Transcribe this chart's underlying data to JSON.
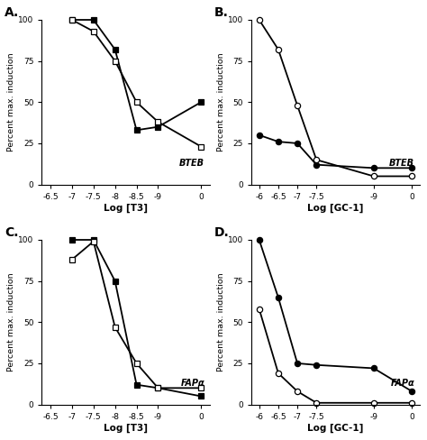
{
  "panel_A": {
    "title": "A.",
    "label": "BTEB",
    "xlabel": "Log [T3]",
    "ylabel": "Percent max. induction",
    "xlim": [
      -6.3,
      -10.2
    ],
    "ylim": [
      0,
      100
    ],
    "xticks": [
      -10,
      -9,
      -8.5,
      -8,
      -7.5,
      -7,
      -6.5
    ],
    "xticklabels": [
      "0",
      "-9",
      "-8.5",
      "-8",
      "-7.5",
      "-7",
      "-6.5"
    ],
    "yticks": [
      0,
      25,
      50,
      75,
      100
    ],
    "series": [
      {
        "x": [
          -10,
          -9,
          -8.5,
          -8,
          -7.5,
          -7
        ],
        "y": [
          50,
          35,
          33,
          82,
          100,
          100
        ],
        "marker": "s",
        "filled": true
      },
      {
        "x": [
          -10,
          -9,
          -8.5,
          -8,
          -7.5,
          -7
        ],
        "y": [
          23,
          38,
          50,
          75,
          93,
          100
        ],
        "marker": "s",
        "filled": false
      }
    ]
  },
  "panel_B": {
    "title": "B.",
    "label": "BTEB",
    "xlabel": "Log [GC-1]",
    "ylabel": "Percent max. induction",
    "xlim": [
      -5.8,
      -10.2
    ],
    "ylim": [
      0,
      100
    ],
    "xticks": [
      -10,
      -9,
      -7.5,
      -7,
      -6.5,
      -6
    ],
    "xticklabels": [
      "0",
      "-9",
      "-7.5",
      "-7",
      "-6.5",
      "-6"
    ],
    "yticks": [
      0,
      25,
      50,
      75,
      100
    ],
    "series": [
      {
        "x": [
          -10,
          -9,
          -7.5,
          -7,
          -6.5,
          -6
        ],
        "y": [
          10,
          10,
          12,
          25,
          26,
          30
        ],
        "marker": "o",
        "filled": true
      },
      {
        "x": [
          -10,
          -9,
          -7.5,
          -7,
          -6.5,
          -6
        ],
        "y": [
          5,
          5,
          15,
          48,
          82,
          100
        ],
        "marker": "o",
        "filled": false
      }
    ]
  },
  "panel_C": {
    "title": "C.",
    "label": "FAPα",
    "xlabel": "Log [T3]",
    "ylabel": "Percent max. induction",
    "xlim": [
      -6.3,
      -10.2
    ],
    "ylim": [
      0,
      100
    ],
    "xticks": [
      -10,
      -9,
      -8.5,
      -8,
      -7.5,
      -7,
      -6.5
    ],
    "xticklabels": [
      "0",
      "-9",
      "-8.5",
      "-8",
      "-7.5",
      "-7",
      "-6.5"
    ],
    "yticks": [
      0,
      25,
      50,
      75,
      100
    ],
    "series": [
      {
        "x": [
          -10,
          -9,
          -8.5,
          -8,
          -7.5,
          -7
        ],
        "y": [
          5,
          10,
          12,
          75,
          100,
          100
        ],
        "marker": "s",
        "filled": true
      },
      {
        "x": [
          -10,
          -9,
          -8.5,
          -8,
          -7.5,
          -7
        ],
        "y": [
          10,
          10,
          25,
          47,
          99,
          88
        ],
        "marker": "s",
        "filled": false
      }
    ]
  },
  "panel_D": {
    "title": "D.",
    "label": "FAPα",
    "xlabel": "Log [GC-1]",
    "ylabel": "Percent max. induction",
    "xlim": [
      -5.8,
      -10.2
    ],
    "ylim": [
      0,
      100
    ],
    "xticks": [
      -10,
      -9,
      -7.5,
      -7,
      -6.5,
      -6
    ],
    "xticklabels": [
      "0",
      "-9",
      "-7.5",
      "-7",
      "-6.5",
      "-6"
    ],
    "yticks": [
      0,
      25,
      50,
      75,
      100
    ],
    "series": [
      {
        "x": [
          -10,
          -9,
          -7.5,
          -7,
          -6.5,
          -6
        ],
        "y": [
          8,
          22,
          24,
          25,
          65,
          100
        ],
        "marker": "o",
        "filled": true
      },
      {
        "x": [
          -10,
          -9,
          -7.5,
          -7,
          -6.5,
          -6
        ],
        "y": [
          1,
          1,
          1,
          8,
          19,
          58
        ],
        "marker": "o",
        "filled": false
      }
    ]
  }
}
